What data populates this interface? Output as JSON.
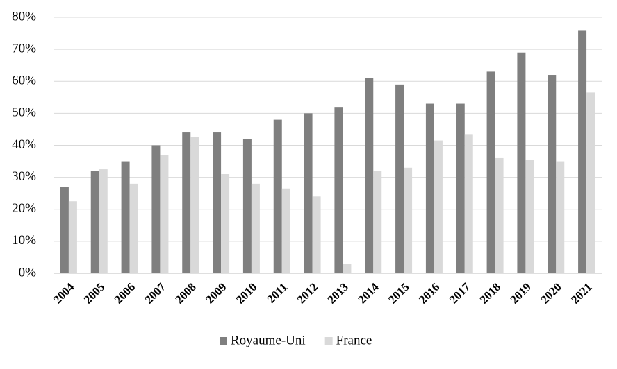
{
  "chart_data": {
    "type": "bar",
    "categories": [
      "2004",
      "2005",
      "2006",
      "2007",
      "2008",
      "2009",
      "2010",
      "2011",
      "2012",
      "2013",
      "2014",
      "2015",
      "2016",
      "2017",
      "2018",
      "2019",
      "2020",
      "2021"
    ],
    "series": [
      {
        "name": "Royaume-Uni",
        "color": "#7f7f7f",
        "values": [
          27,
          32,
          35,
          40,
          44,
          44,
          42,
          48,
          50,
          52,
          61,
          59,
          53,
          53,
          63,
          69,
          62,
          76
        ]
      },
      {
        "name": "France",
        "color": "#d9d9d9",
        "values": [
          22.5,
          32.5,
          28,
          37,
          42.5,
          31,
          28,
          26.5,
          24,
          3,
          32,
          33,
          41.5,
          43.5,
          36,
          35.5,
          35,
          56.5
        ]
      }
    ],
    "ylim": [
      0,
      80
    ],
    "yticks": [
      {
        "value": 0,
        "label": "0%"
      },
      {
        "value": 10,
        "label": "10%"
      },
      {
        "value": 20,
        "label": "20%"
      },
      {
        "value": 30,
        "label": "30%"
      },
      {
        "value": 40,
        "label": "40%"
      },
      {
        "value": 50,
        "label": "50%"
      },
      {
        "value": 60,
        "label": "60%"
      },
      {
        "value": 70,
        "label": "70%"
      },
      {
        "value": 80,
        "label": "80%"
      }
    ],
    "grid": true,
    "legend": "bottom"
  }
}
